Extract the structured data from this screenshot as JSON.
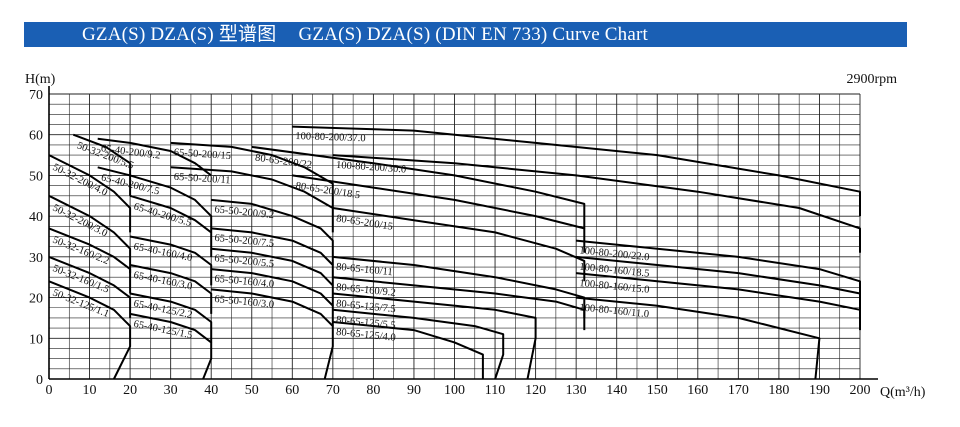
{
  "header": {
    "title_cn": "GZA(S) DZA(S) 型谱图",
    "title_en": "GZA(S) DZA(S) (DIN EN 733) Curve Chart",
    "color": "#1a5fb4"
  },
  "chart_data": {
    "type": "line",
    "title": "GZA(S) DZA(S) (DIN EN 733) Curve Chart",
    "speed": "2900rpm",
    "xlabel": "Q(m³/h)",
    "ylabel": "H(m)",
    "xlim": [
      0,
      200
    ],
    "ylim": [
      0,
      70
    ],
    "xticks": [
      0,
      10,
      20,
      30,
      40,
      50,
      60,
      70,
      80,
      90,
      100,
      110,
      120,
      130,
      140,
      150,
      160,
      170,
      180,
      190,
      200
    ],
    "yticks": [
      0,
      10,
      20,
      30,
      40,
      50,
      60,
      70
    ],
    "grid": true,
    "series": [
      {
        "name": "50-32-200/5.5",
        "points": [
          [
            6,
            60
          ],
          [
            14,
            57
          ],
          [
            20,
            53
          ],
          [
            20,
            45
          ]
        ]
      },
      {
        "name": "50-32-200/4.0",
        "points": [
          [
            0,
            55
          ],
          [
            10,
            50
          ],
          [
            16,
            46
          ],
          [
            20,
            42
          ],
          [
            20,
            36
          ]
        ]
      },
      {
        "name": "50-32-200/3.0",
        "points": [
          [
            0,
            45
          ],
          [
            10,
            40
          ],
          [
            16,
            36
          ],
          [
            20,
            32
          ],
          [
            20,
            26
          ]
        ]
      },
      {
        "name": "50-32-160/2.2",
        "points": [
          [
            0,
            37
          ],
          [
            10,
            33
          ],
          [
            16,
            30
          ],
          [
            20,
            27
          ],
          [
            20,
            21
          ]
        ]
      },
      {
        "name": "50-32-160/1.5",
        "points": [
          [
            0,
            30
          ],
          [
            10,
            26
          ],
          [
            16,
            23
          ],
          [
            20,
            20
          ],
          [
            20,
            15
          ]
        ]
      },
      {
        "name": "50-32-125/1.1",
        "points": [
          [
            0,
            24
          ],
          [
            10,
            20
          ],
          [
            16,
            17
          ],
          [
            20,
            13
          ],
          [
            20,
            8
          ],
          [
            16,
            0
          ]
        ]
      },
      {
        "name": "65-40-200/9.2",
        "points": [
          [
            12,
            59
          ],
          [
            20,
            58
          ],
          [
            30,
            56
          ],
          [
            36,
            53
          ],
          [
            40,
            50
          ]
        ]
      },
      {
        "name": "65-40-200/7.5",
        "points": [
          [
            12,
            52
          ],
          [
            20,
            50
          ],
          [
            30,
            47
          ],
          [
            36,
            44
          ],
          [
            40,
            40
          ],
          [
            40,
            36
          ]
        ]
      },
      {
        "name": "65-40-200/5.5",
        "points": [
          [
            20,
            45
          ],
          [
            30,
            42
          ],
          [
            36,
            39
          ],
          [
            40,
            36
          ],
          [
            40,
            30
          ]
        ]
      },
      {
        "name": "65-40-160/4.0",
        "points": [
          [
            20,
            35
          ],
          [
            30,
            33
          ],
          [
            36,
            31
          ],
          [
            40,
            28
          ],
          [
            40,
            23
          ]
        ]
      },
      {
        "name": "65-40-160/3.0",
        "points": [
          [
            20,
            28
          ],
          [
            30,
            26
          ],
          [
            36,
            24
          ],
          [
            40,
            21
          ],
          [
            40,
            16
          ]
        ]
      },
      {
        "name": "65-40-125/2.2",
        "points": [
          [
            20,
            21
          ],
          [
            30,
            19
          ],
          [
            36,
            17
          ],
          [
            40,
            14
          ],
          [
            40,
            9
          ]
        ]
      },
      {
        "name": "65-40-125/1.5",
        "points": [
          [
            20,
            16
          ],
          [
            30,
            14
          ],
          [
            36,
            12
          ],
          [
            40,
            9
          ],
          [
            40,
            5
          ],
          [
            38,
            0
          ]
        ]
      },
      {
        "name": "65-50-200/15",
        "points": [
          [
            30,
            58
          ],
          [
            45,
            57
          ],
          [
            55,
            55
          ],
          [
            63,
            52
          ],
          [
            70,
            48
          ],
          [
            70,
            42
          ]
        ]
      },
      {
        "name": "65-50-200/11",
        "points": [
          [
            30,
            52
          ],
          [
            45,
            51
          ],
          [
            55,
            49
          ],
          [
            63,
            46
          ],
          [
            70,
            42
          ],
          [
            70,
            36
          ]
        ]
      },
      {
        "name": "65-50-200/9.2",
        "points": [
          [
            40,
            44
          ],
          [
            50,
            43
          ],
          [
            60,
            40
          ],
          [
            67,
            37
          ],
          [
            70,
            34
          ],
          [
            70,
            28
          ]
        ]
      },
      {
        "name": "65-50-200/7.5",
        "points": [
          [
            40,
            37
          ],
          [
            50,
            36
          ],
          [
            60,
            34
          ],
          [
            67,
            31
          ],
          [
            70,
            28
          ],
          [
            70,
            23
          ]
        ]
      },
      {
        "name": "65-50-200/5.5",
        "points": [
          [
            40,
            32
          ],
          [
            50,
            31
          ],
          [
            60,
            29
          ],
          [
            67,
            26
          ],
          [
            70,
            23
          ],
          [
            70,
            18
          ]
        ]
      },
      {
        "name": "65-50-160/4.0",
        "points": [
          [
            40,
            27
          ],
          [
            50,
            26
          ],
          [
            60,
            24
          ],
          [
            67,
            21
          ],
          [
            70,
            18
          ],
          [
            70,
            13
          ]
        ]
      },
      {
        "name": "65-50-160/3.0",
        "points": [
          [
            40,
            22
          ],
          [
            50,
            21
          ],
          [
            60,
            19
          ],
          [
            67,
            16
          ],
          [
            70,
            13
          ],
          [
            70,
            8
          ],
          [
            68,
            0
          ]
        ]
      },
      {
        "name": "80-65-200/22",
        "points": [
          [
            50,
            57
          ],
          [
            80,
            53
          ],
          [
            100,
            50
          ],
          [
            120,
            46
          ],
          [
            132,
            43
          ],
          [
            132,
            37
          ]
        ]
      },
      {
        "name": "80-65-200/18.5",
        "points": [
          [
            60,
            50
          ],
          [
            80,
            47
          ],
          [
            100,
            44
          ],
          [
            120,
            40
          ],
          [
            132,
            37
          ],
          [
            132,
            31
          ]
        ]
      },
      {
        "name": "80-65-200/15",
        "points": [
          [
            70,
            42
          ],
          [
            90,
            39
          ],
          [
            110,
            36
          ],
          [
            125,
            32
          ],
          [
            132,
            29
          ],
          [
            132,
            24
          ]
        ]
      },
      {
        "name": "80-65-160/11",
        "points": [
          [
            70,
            30
          ],
          [
            90,
            28
          ],
          [
            110,
            25
          ],
          [
            125,
            22
          ],
          [
            132,
            20
          ],
          [
            132,
            15
          ]
        ]
      },
      {
        "name": "80-65-160/9.2",
        "points": [
          [
            70,
            25
          ],
          [
            90,
            23
          ],
          [
            110,
            21
          ],
          [
            125,
            19
          ],
          [
            132,
            17
          ],
          [
            132,
            12
          ]
        ]
      },
      {
        "name": "80-65-125/7.5",
        "points": [
          [
            70,
            21
          ],
          [
            90,
            19
          ],
          [
            110,
            17
          ],
          [
            120,
            15
          ],
          [
            120,
            10
          ],
          [
            118,
            0
          ]
        ]
      },
      {
        "name": "80-65-125/5.5",
        "points": [
          [
            70,
            17
          ],
          [
            90,
            15
          ],
          [
            105,
            13
          ],
          [
            112,
            11
          ],
          [
            112,
            6
          ],
          [
            110,
            0
          ]
        ]
      },
      {
        "name": "80-65-125/4.0",
        "points": [
          [
            70,
            14
          ],
          [
            90,
            12
          ],
          [
            100,
            9
          ],
          [
            107,
            6
          ],
          [
            107,
            0
          ]
        ]
      },
      {
        "name": "100-80-200/37.0",
        "points": [
          [
            60,
            62
          ],
          [
            90,
            61
          ],
          [
            120,
            58
          ],
          [
            150,
            55
          ],
          [
            180,
            50
          ],
          [
            200,
            46
          ],
          [
            200,
            40
          ]
        ]
      },
      {
        "name": "100-80-200/30.0",
        "points": [
          [
            70,
            55
          ],
          [
            100,
            53
          ],
          [
            130,
            50
          ],
          [
            160,
            46
          ],
          [
            185,
            42
          ],
          [
            200,
            37
          ],
          [
            200,
            31
          ]
        ]
      },
      {
        "name": "100-80-200/22.0",
        "points": [
          [
            130,
            34
          ],
          [
            150,
            32
          ],
          [
            170,
            30
          ],
          [
            190,
            27
          ],
          [
            200,
            24
          ],
          [
            200,
            20
          ]
        ]
      },
      {
        "name": "100-80-160/18.5",
        "points": [
          [
            130,
            30
          ],
          [
            150,
            28
          ],
          [
            170,
            26
          ],
          [
            190,
            23
          ],
          [
            200,
            21
          ],
          [
            200,
            17
          ]
        ]
      },
      {
        "name": "100-80-160/15.0",
        "points": [
          [
            130,
            26
          ],
          [
            150,
            24
          ],
          [
            170,
            22
          ],
          [
            190,
            19
          ],
          [
            200,
            17
          ],
          [
            200,
            12
          ]
        ]
      },
      {
        "name": "100-80-160/11.0",
        "points": [
          [
            130,
            20
          ],
          [
            150,
            18
          ],
          [
            170,
            15
          ],
          [
            190,
            10
          ],
          [
            189,
            0
          ]
        ]
      }
    ]
  }
}
